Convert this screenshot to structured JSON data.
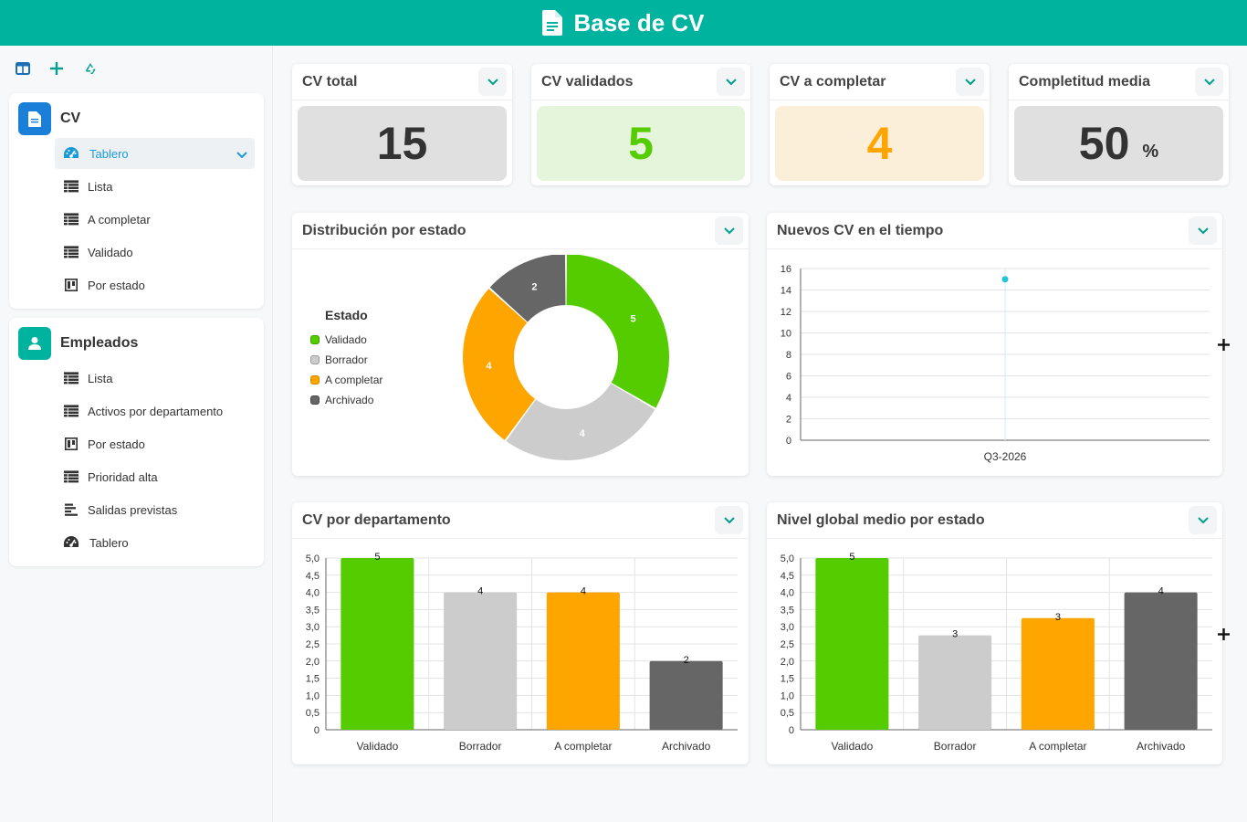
{
  "header": {
    "title": "Base de CV"
  },
  "sidebar": {
    "toolbar": [
      "layout-icon",
      "plus-icon",
      "recycle-icon"
    ],
    "groups": [
      {
        "title": "CV",
        "color": "#1a7fd9",
        "items": [
          {
            "label": "Tablero",
            "icon": "dashboard-icon",
            "active": true
          },
          {
            "label": "Lista",
            "icon": "table-icon"
          },
          {
            "label": "A completar",
            "icon": "table-icon"
          },
          {
            "label": "Validado",
            "icon": "table-icon"
          },
          {
            "label": "Por estado",
            "icon": "kanban-icon"
          }
        ]
      },
      {
        "title": "Empleados",
        "color": "#00b39f",
        "items": [
          {
            "label": "Lista",
            "icon": "table-icon"
          },
          {
            "label": "Activos por departamento",
            "icon": "table-icon"
          },
          {
            "label": "Por estado",
            "icon": "kanban-icon"
          },
          {
            "label": "Prioridad alta",
            "icon": "table-icon"
          },
          {
            "label": "Salidas previstas",
            "icon": "timeline-icon"
          },
          {
            "label": "Tablero",
            "icon": "dashboard-icon"
          }
        ]
      }
    ]
  },
  "kpis": [
    {
      "title": "CV total",
      "value": "15",
      "unit": "",
      "bg": "#e0e0e0",
      "color": "#333333"
    },
    {
      "title": "CV validados",
      "value": "5",
      "unit": "",
      "bg": "#e4f5dc",
      "color": "#55cc00"
    },
    {
      "title": "CV a completar",
      "value": "4",
      "unit": "",
      "bg": "#fcefd9",
      "color": "#ffa500"
    },
    {
      "title": "Completitud media",
      "value": "50",
      "unit": "%",
      "bg": "#e0e0e0",
      "color": "#333333"
    }
  ],
  "colors": {
    "Validado": "#55cc00",
    "Borrador": "#cccccc",
    "A completar": "#ffa500",
    "Archivado": "#666666"
  },
  "chart_data": [
    {
      "type": "pie",
      "title": "Distribución por estado",
      "legend_title": "Estado",
      "legend": "left",
      "categories": [
        "Validado",
        "Borrador",
        "A completar",
        "Archivado"
      ],
      "values": [
        5,
        4,
        4,
        2
      ]
    },
    {
      "type": "line",
      "title": "Nuevos CV en el tiempo",
      "categories": [
        "Q3-2026"
      ],
      "values": [
        15
      ],
      "ylim": [
        0,
        16
      ],
      "yticks": [
        "0",
        "2",
        "4",
        "6",
        "8",
        "10",
        "12",
        "14",
        "16"
      ],
      "grid": true
    },
    {
      "type": "bar",
      "title": "CV por departamento",
      "categories": [
        "Validado",
        "Borrador",
        "A completar",
        "Archivado"
      ],
      "values": [
        5,
        4,
        4,
        2
      ],
      "ylim": [
        0,
        5
      ],
      "yticks": [
        "0",
        "0,5",
        "1,0",
        "1,5",
        "2,0",
        "2,5",
        "3,0",
        "3,5",
        "4,0",
        "4,5",
        "5,0"
      ],
      "grid": true
    },
    {
      "type": "bar",
      "title": "Nivel global medio por estado",
      "categories": [
        "Validado",
        "Borrador",
        "A completar",
        "Archivado"
      ],
      "values": [
        5,
        2.75,
        3.25,
        4
      ],
      "data_labels": [
        "5",
        "3",
        "3",
        "4"
      ],
      "ylim": [
        0,
        5
      ],
      "yticks": [
        "0",
        "0,5",
        "1,0",
        "1,5",
        "2,0",
        "2,5",
        "3,0",
        "3,5",
        "4,0",
        "4,5",
        "5,0"
      ],
      "grid": true
    }
  ]
}
